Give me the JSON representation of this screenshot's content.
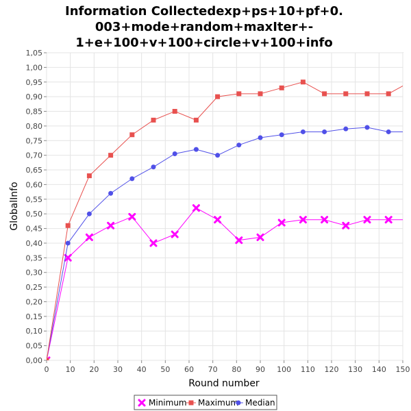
{
  "chart_data": {
    "type": "line",
    "title_lines": [
      "Information Collectedexp+ps+10+pf+0.",
      "003+mode+random+maxIter+-",
      "1+e+100+v+100+circle+v+100+info"
    ],
    "xlabel": "Round number",
    "ylabel": "GlobalInfo",
    "xlim": [
      0,
      150
    ],
    "ylim": [
      0,
      1.05
    ],
    "x_ticks": [
      0,
      10,
      20,
      30,
      40,
      50,
      60,
      70,
      80,
      90,
      100,
      110,
      120,
      130,
      140,
      150
    ],
    "y_ticks": [
      "0,00",
      "0,05",
      "0,10",
      "0,15",
      "0,20",
      "0,25",
      "0,30",
      "0,35",
      "0,40",
      "0,45",
      "0,50",
      "0,55",
      "0,60",
      "0,65",
      "0,70",
      "0,75",
      "0,80",
      "0,85",
      "0,90",
      "0,95",
      "1,00",
      "1,05"
    ],
    "x_tick_labels": [
      "0",
      "10",
      "20",
      "30",
      "40",
      "50",
      "60",
      "70",
      "80",
      "90",
      "100",
      "110",
      "120",
      "130",
      "140",
      "150"
    ],
    "x": [
      0,
      9,
      18,
      27,
      36,
      45,
      54,
      63,
      72,
      81,
      90,
      99,
      108,
      117,
      126,
      135,
      144,
      153
    ],
    "series": [
      {
        "name": "Minimum",
        "color": "#ff00ff",
        "marker": "x",
        "values": [
          0.0,
          0.35,
          0.42,
          0.46,
          0.49,
          0.4,
          0.43,
          0.52,
          0.48,
          0.41,
          0.42,
          0.47,
          0.48,
          0.48,
          0.46,
          0.48,
          0.48,
          0.48
        ]
      },
      {
        "name": "Maximum",
        "color": "#e8514f",
        "marker": "square",
        "values": [
          0.0,
          0.46,
          0.63,
          0.7,
          0.77,
          0.82,
          0.85,
          0.82,
          0.9,
          0.91,
          0.91,
          0.93,
          0.95,
          0.91,
          0.91,
          0.91,
          0.91,
          0.95
        ]
      },
      {
        "name": "Median",
        "color": "#5050e8",
        "marker": "circle",
        "values": [
          0.0,
          0.4,
          0.5,
          0.57,
          0.62,
          0.66,
          0.705,
          0.72,
          0.7,
          0.735,
          0.76,
          0.77,
          0.78,
          0.78,
          0.79,
          0.795,
          0.78,
          0.78
        ]
      }
    ],
    "grid": true,
    "legend_position": "bottom-center"
  }
}
